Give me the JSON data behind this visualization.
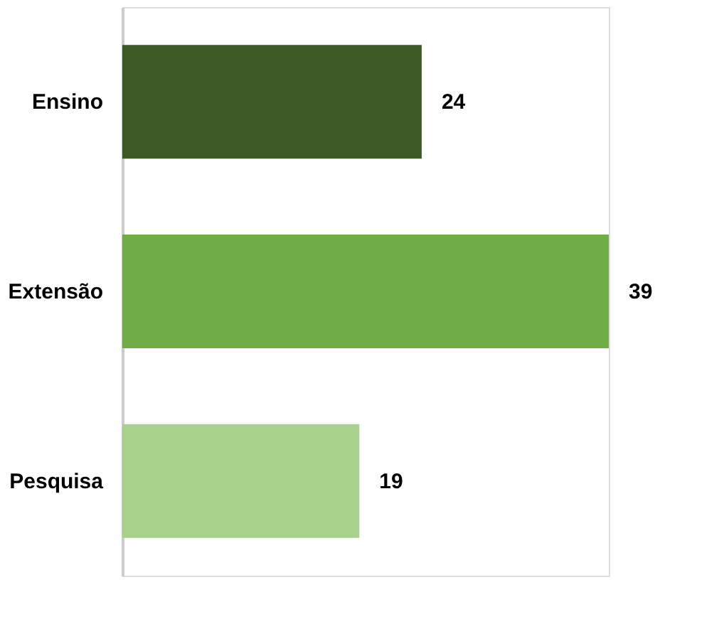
{
  "chart_data": {
    "type": "bar",
    "orientation": "horizontal",
    "categories": [
      "Ensino",
      "Extensão",
      "Pesquisa"
    ],
    "values": [
      24,
      39,
      19
    ],
    "colors": [
      "#3b5a25",
      "#70ad47",
      "#a9d18e"
    ],
    "data_labels": true
  }
}
